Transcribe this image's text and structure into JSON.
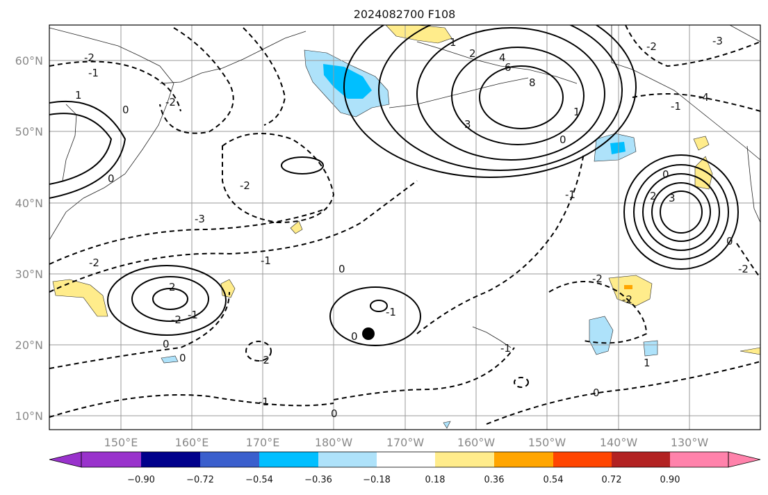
{
  "title": "2024082700 F108",
  "lat_ticks": [
    "60°N",
    "50°N",
    "40°N",
    "30°N",
    "20°N",
    "10°N"
  ],
  "lon_ticks": [
    "150°E",
    "160°E",
    "170°E",
    "180°W",
    "170°W",
    "160°W",
    "150°W",
    "140°W",
    "130°W"
  ],
  "colorbar": {
    "tick_labels": [
      "−0.90",
      "−0.72",
      "−0.54",
      "−0.36",
      "−0.18",
      "0.18",
      "0.36",
      "0.54",
      "0.72",
      "0.90"
    ],
    "colors": [
      "#9932cc",
      "#00008b",
      "#3a5fcd",
      "#00bfff",
      "#aee2fa",
      "#ffffff",
      "#ffec8b",
      "#ffa500",
      "#ff4500",
      "#b22222",
      "#ff82ab"
    ]
  },
  "fill_colors": {
    "light_blue": "#aee2fa",
    "blue": "#00bfff",
    "yellow": "#ffec8b",
    "orange": "#ffa500"
  },
  "contour_labels": [
    "-2",
    "-1",
    "1",
    "0",
    "-2",
    "0",
    "-2",
    "-3",
    "-1",
    "-2",
    "0",
    "2",
    "-1",
    "0",
    "-1",
    "-2",
    "0",
    "-2",
    "-1",
    "0",
    "1",
    "2",
    "4",
    "6",
    "8",
    "3",
    "0",
    "1",
    "-2",
    "-3",
    "-4",
    "-1",
    "0",
    "2",
    "3",
    "0",
    "-2",
    "-1",
    "-2",
    "-2",
    "0",
    "1",
    "-1",
    "0"
  ],
  "marker": "storm-center-dot"
}
